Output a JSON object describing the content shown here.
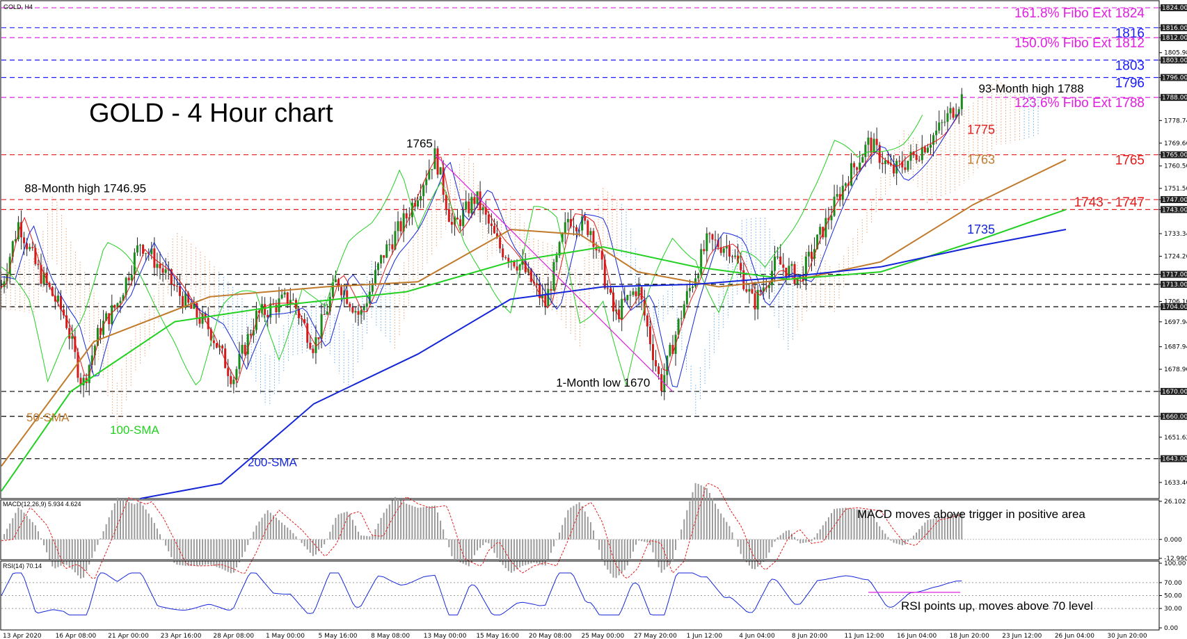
{
  "header": {
    "symbol_label": "GOLD, H4"
  },
  "indicator_labels": {
    "macd": "MACD(12,26,9) 5.934 4.624",
    "rsi": "RSI(14) 70.14"
  },
  "chart_data": {
    "type": "candlestick",
    "title": "GOLD - 4 Hour chart",
    "price_ticks": [
      "1824.00",
      "1816.00",
      "1812.00",
      "1805.98",
      "1803.00",
      "1796.00",
      "1788.00",
      "1778.74",
      "1769.66",
      "1765.00",
      "1760.50",
      "1751.50",
      "1747.00",
      "1743.00",
      "1733.34",
      "1724.26",
      "1717.00",
      "1713.00",
      "1706.10",
      "1704.00",
      "1697.94",
      "1687.94",
      "1678.90",
      "1670.00",
      "1660.00",
      "1651.62",
      "1643.00",
      "1633.46"
    ],
    "price_range": [
      1627,
      1826
    ],
    "x_labels": [
      "13 Apr 2020",
      "16 Apr 08:00",
      "21 Apr 00:00",
      "23 Apr 16:00",
      "28 Apr 08:00",
      "1 May 00:00",
      "5 May 16:00",
      "8 May 08:00",
      "13 May 00:00",
      "15 May 16:00",
      "20 May 08:00",
      "25 May 00:00",
      "27 May 20:00",
      "1 Jun 12:00",
      "4 Jun 04:00",
      "8 Jun 20:00",
      "11 Jun 12:00",
      "16 Jun 04:00",
      "18 Jun 20:00",
      "23 Jun 12:00",
      "26 Jun 04:00",
      "30 Jun 20:00"
    ],
    "horizontal_levels": [
      {
        "price": 1824,
        "color": "#e020e0",
        "label": "161.8% Fibo Ext 1824"
      },
      {
        "price": 1816,
        "color": "#1a1aff",
        "label": "1816"
      },
      {
        "price": 1812,
        "color": "#e020e0",
        "label": "150.0% Fibo Ext 1812"
      },
      {
        "price": 1803,
        "color": "#1a1aff",
        "label": "1803"
      },
      {
        "price": 1796,
        "color": "#1a1aff",
        "label": "1796"
      },
      {
        "price": 1788,
        "color": "#e020e0",
        "label": "123.6% Fibo Ext 1788"
      },
      {
        "price": 1765,
        "color": "#e41a1a",
        "label": "1765"
      },
      {
        "price": 1747,
        "color": "#e41a1a",
        "label": "1743 - 1747"
      },
      {
        "price": 1743,
        "color": "#e41a1a",
        "label": ""
      },
      {
        "price": 1717,
        "color": "#000000",
        "label": ""
      },
      {
        "price": 1713,
        "color": "#000000",
        "label": ""
      },
      {
        "price": 1704,
        "color": "#000000",
        "label": ""
      },
      {
        "price": 1670,
        "color": "#000000",
        "label": ""
      },
      {
        "price": 1660,
        "color": "#000000",
        "label": ""
      },
      {
        "price": 1643,
        "color": "#000000",
        "label": ""
      }
    ],
    "sma": [
      {
        "name": "50-SMA",
        "color": "#c07a2c",
        "value": 1763,
        "points": [
          [
            0,
            1640
          ],
          [
            0.08,
            1690
          ],
          [
            0.18,
            1708
          ],
          [
            0.28,
            1712
          ],
          [
            0.36,
            1714
          ],
          [
            0.44,
            1735
          ],
          [
            0.5,
            1733
          ],
          [
            0.55,
            1718
          ],
          [
            0.62,
            1712
          ],
          [
            0.7,
            1716
          ],
          [
            0.76,
            1722
          ],
          [
            0.84,
            1745
          ],
          [
            0.92,
            1763
          ]
        ]
      },
      {
        "name": "100-SMA",
        "color": "#22d022",
        "value": 1743,
        "points": [
          [
            0,
            1630
          ],
          [
            0.06,
            1670
          ],
          [
            0.15,
            1698
          ],
          [
            0.25,
            1705
          ],
          [
            0.35,
            1710
          ],
          [
            0.44,
            1722
          ],
          [
            0.52,
            1728
          ],
          [
            0.6,
            1720
          ],
          [
            0.68,
            1715
          ],
          [
            0.76,
            1718
          ],
          [
            0.84,
            1730
          ],
          [
            0.92,
            1743
          ]
        ]
      },
      {
        "name": "200-SMA",
        "color": "#1426d8",
        "value": 1735,
        "points": [
          [
            0.12,
            1627
          ],
          [
            0.19,
            1633
          ],
          [
            0.27,
            1665
          ],
          [
            0.36,
            1685
          ],
          [
            0.44,
            1707
          ],
          [
            0.52,
            1712
          ],
          [
            0.6,
            1713
          ],
          [
            0.68,
            1716
          ],
          [
            0.76,
            1720
          ],
          [
            0.84,
            1728
          ],
          [
            0.92,
            1735
          ]
        ]
      }
    ],
    "series_labels": [
      {
        "text": "1775",
        "color": "#e41a1a",
        "price": 1775
      },
      {
        "text": "1763",
        "color": "#c07a2c",
        "price": 1763
      },
      {
        "text": "1735",
        "color": "#1426d8",
        "price": 1735
      }
    ],
    "annotations": [
      {
        "text": "93-Month high 1788",
        "x_frac": 0.89,
        "price": 1790
      },
      {
        "text": "1765",
        "x_frac": 0.35,
        "price": 1768
      },
      {
        "text": "88-Month high 1746.95",
        "x_frac": 0.02,
        "price": 1750
      },
      {
        "text": "1-Month low 1670",
        "x_frac": 0.52,
        "price": 1672
      }
    ],
    "trendline": {
      "from": [
        0.375,
        1765
      ],
      "to": [
        0.58,
        1670
      ],
      "color": "#e020e0"
    },
    "macd": {
      "ticks": [
        "26.102",
        "0.000",
        "-12.990"
      ],
      "range": [
        -12.99,
        26.102
      ],
      "annotation": "MACD moves above trigger in positive area"
    },
    "rsi": {
      "ticks": [
        "100.00",
        "70.00",
        "50.00",
        "30.00",
        "0.00"
      ],
      "range": [
        0,
        100
      ],
      "annotation": "RSI points up, moves above 70 level"
    }
  }
}
